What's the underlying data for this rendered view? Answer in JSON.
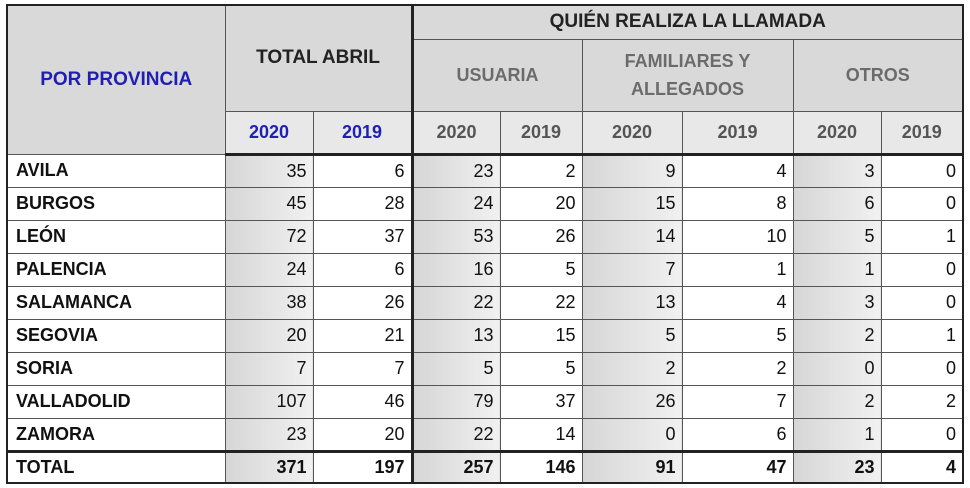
{
  "table": {
    "province_header": "POR PROVINCIA",
    "total_header": "TOTAL ABRIL",
    "caller_header": "QUIÉN REALIZA LA LLAMADA",
    "groups": [
      "USUARIA",
      "FAMILIARES Y ALLEGADOS",
      "OTROS"
    ],
    "years": [
      "2020",
      "2019"
    ],
    "rows": [
      {
        "province": "AVILA",
        "values": [
          "35",
          "6",
          "23",
          "2",
          "9",
          "4",
          "3",
          "0"
        ]
      },
      {
        "province": "BURGOS",
        "values": [
          "45",
          "28",
          "24",
          "20",
          "15",
          "8",
          "6",
          "0"
        ]
      },
      {
        "province": "LEÓN",
        "values": [
          "72",
          "37",
          "53",
          "26",
          "14",
          "10",
          "5",
          "1"
        ]
      },
      {
        "province": "PALENCIA",
        "values": [
          "24",
          "6",
          "16",
          "5",
          "7",
          "1",
          "1",
          "0"
        ]
      },
      {
        "province": "SALAMANCA",
        "values": [
          "38",
          "26",
          "22",
          "22",
          "13",
          "4",
          "3",
          "0"
        ]
      },
      {
        "province": "SEGOVIA",
        "values": [
          "20",
          "21",
          "13",
          "15",
          "5",
          "5",
          "2",
          "1"
        ]
      },
      {
        "province": "SORIA",
        "values": [
          "7",
          "7",
          "5",
          "5",
          "2",
          "2",
          "0",
          "0"
        ]
      },
      {
        "province": "VALLADOLID",
        "values": [
          "107",
          "46",
          "79",
          "37",
          "26",
          "7",
          "2",
          "2"
        ]
      },
      {
        "province": "ZAMORA",
        "values": [
          "23",
          "20",
          "22",
          "14",
          "0",
          "6",
          "1",
          "0"
        ]
      }
    ],
    "total": {
      "label": "TOTAL",
      "values": [
        "371",
        "197",
        "257",
        "146",
        "91",
        "47",
        "23",
        "4"
      ]
    }
  }
}
